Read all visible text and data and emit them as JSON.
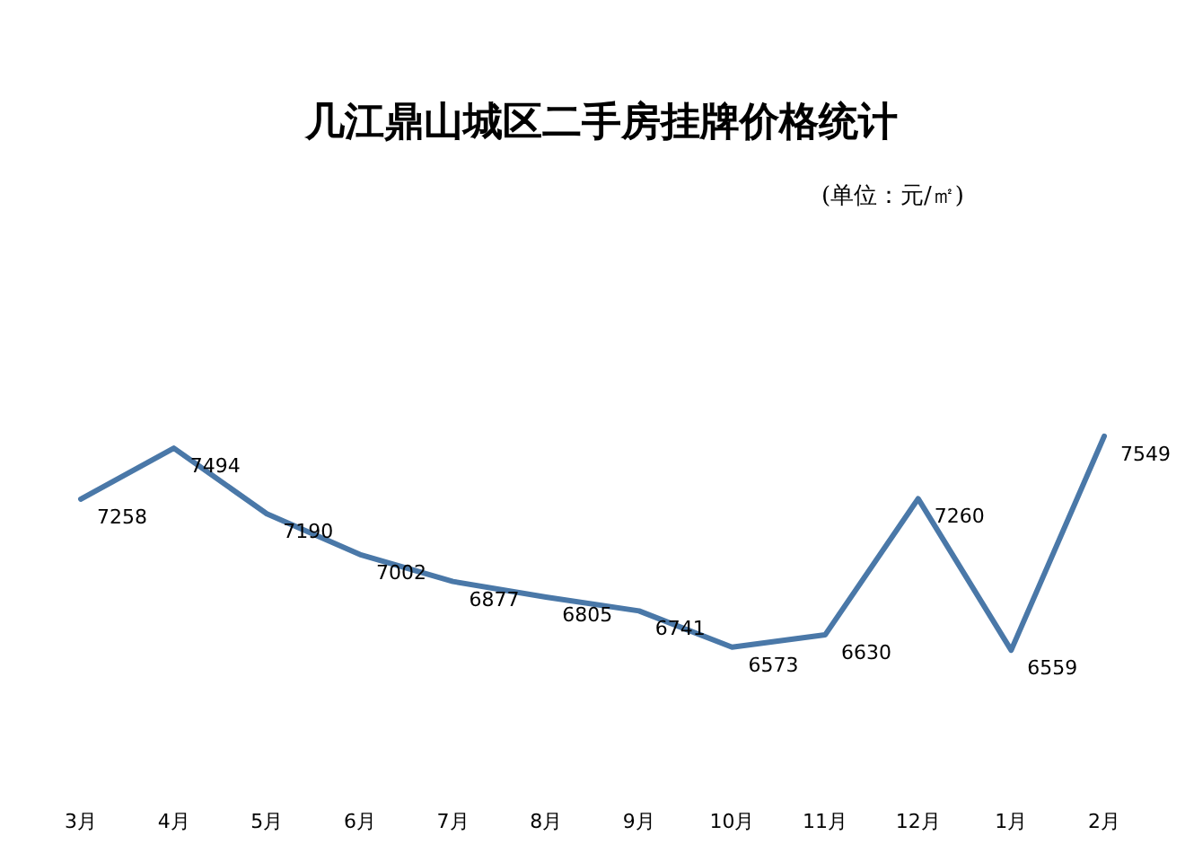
{
  "chart_data": {
    "type": "line",
    "title": "几江鼎山城区二手房挂牌价格统计",
    "subtitle": "(单位：元/㎡)",
    "categories": [
      "3月",
      "4月",
      "5月",
      "6月",
      "7月",
      "8月",
      "9月",
      "10月",
      "11月",
      "12月",
      "1月",
      "2月"
    ],
    "series": [
      {
        "color": "#4a78a8",
        "values": [
          7258,
          7494,
          7190,
          7002,
          6877,
          6805,
          6741,
          6573,
          6630,
          7260,
          6559,
          7549
        ]
      }
    ],
    "data_labels": true,
    "grid": false,
    "marker": "none",
    "line_style": "solid",
    "tick_labels": "x"
  }
}
